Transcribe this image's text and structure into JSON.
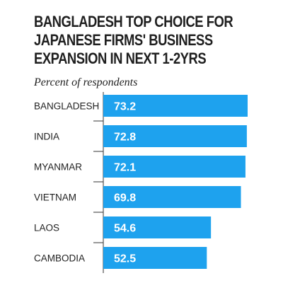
{
  "chart_data": {
    "type": "bar",
    "orientation": "horizontal",
    "title_lines": [
      "BANGLADESH TOP CHOICE FOR",
      "JAPANESE FIRMS' BUSINESS",
      "EXPANSION IN NEXT 1-2YRS"
    ],
    "subtitle": "Percent of respondents",
    "categories": [
      "BANGLADESH",
      "INDIA",
      "MYANMAR",
      "VIETNAM",
      "LAOS",
      "CAMBODIA"
    ],
    "values": [
      73.2,
      72.8,
      72.1,
      69.8,
      54.6,
      52.5
    ],
    "value_labels": [
      "73.2",
      "72.8",
      "72.1",
      "69.8",
      "54.6",
      "52.5"
    ],
    "bar_color": "#1ea2ee",
    "axis_color": "#333333"
  }
}
